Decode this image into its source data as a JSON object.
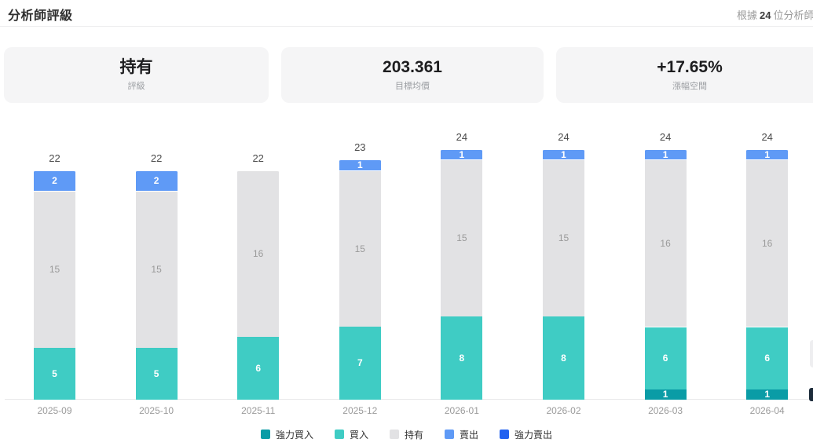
{
  "header": {
    "title": "分析師評級",
    "based_on_prefix": "根據",
    "analyst_count": "24",
    "based_on_suffix": "位分析師"
  },
  "summary_cards": [
    {
      "value": "持有",
      "label": "評級"
    },
    {
      "value": "203.361",
      "label": "目標均價"
    },
    {
      "value": "+17.65%",
      "label": "漲幅空間"
    }
  ],
  "chart_data": {
    "type": "bar",
    "stacked": true,
    "title": "分析師評級",
    "categories": [
      "2025-09",
      "2025-10",
      "2025-11",
      "2025-12",
      "2026-01",
      "2026-02",
      "2026-03",
      "2026-04"
    ],
    "series": [
      {
        "name": "強力買入",
        "color": "#0a9ca6",
        "label_color": "#ffffff",
        "values": [
          0,
          0,
          0,
          0,
          0,
          0,
          1,
          1
        ]
      },
      {
        "name": "買入",
        "color": "#3fccc4",
        "label_color": "#ffffff",
        "values": [
          5,
          5,
          6,
          7,
          8,
          8,
          6,
          6
        ]
      },
      {
        "name": "持有",
        "color": "#e2e2e4",
        "label_color": "#9a9a9a",
        "values": [
          15,
          15,
          16,
          15,
          15,
          15,
          16,
          16
        ]
      },
      {
        "name": "賣出",
        "color": "#5f9af6",
        "label_color": "#ffffff",
        "values": [
          2,
          2,
          0,
          1,
          1,
          1,
          1,
          1
        ]
      },
      {
        "name": "強力賣出",
        "color": "#2161f0",
        "label_color": "#ffffff",
        "values": [
          0,
          0,
          0,
          0,
          0,
          0,
          0,
          0
        ]
      }
    ],
    "totals": [
      22,
      22,
      22,
      23,
      24,
      24,
      24,
      24
    ],
    "ylim": [
      0,
      24
    ],
    "xlabel": "",
    "ylabel": "",
    "grid": false,
    "legend_position": "bottom"
  }
}
